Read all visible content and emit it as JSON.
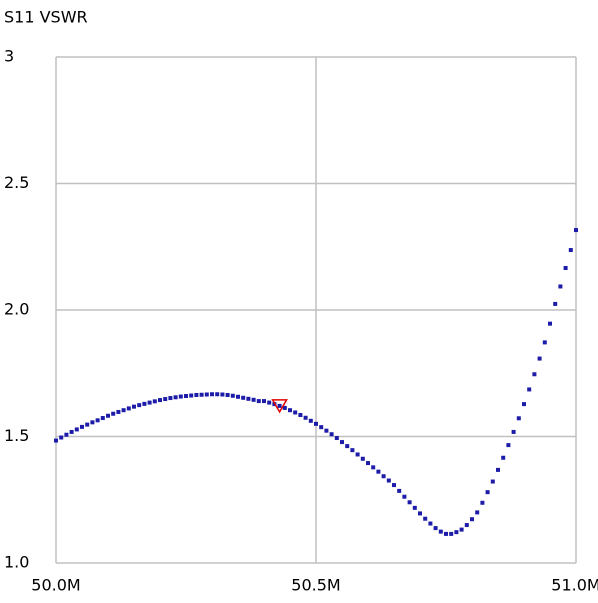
{
  "chart_data": {
    "type": "scatter",
    "title": "S11 VSWR",
    "x": [
      50.0,
      50.01,
      50.02,
      50.03,
      50.04,
      50.05,
      50.06,
      50.07,
      50.08,
      50.09,
      50.1,
      50.11,
      50.12,
      50.13,
      50.14,
      50.15,
      50.16,
      50.17,
      50.18,
      50.19,
      50.2,
      50.21,
      50.22,
      50.23,
      50.24,
      50.25,
      50.26,
      50.27,
      50.28,
      50.29,
      50.3,
      50.31,
      50.32,
      50.33,
      50.34,
      50.35,
      50.36,
      50.37,
      50.38,
      50.39,
      50.4,
      50.41,
      50.42,
      50.43,
      50.44,
      50.45,
      50.46,
      50.47,
      50.48,
      50.49,
      50.5,
      50.51,
      50.52,
      50.53,
      50.54,
      50.55,
      50.56,
      50.57,
      50.58,
      50.59,
      50.6,
      50.61,
      50.62,
      50.63,
      50.64,
      50.65,
      50.66,
      50.67,
      50.68,
      50.69,
      50.7,
      50.71,
      50.72,
      50.73,
      50.74,
      50.75,
      50.76,
      50.77,
      50.78,
      50.79,
      50.8,
      50.81,
      50.82,
      50.83,
      50.84,
      50.85,
      50.86,
      50.87,
      50.88,
      50.89,
      50.9,
      50.91,
      50.92,
      50.93,
      50.94,
      50.95,
      50.96,
      50.97,
      50.98,
      50.99,
      51.0
    ],
    "series": [
      {
        "color": "#1c1ca8",
        "values": [
          1.484,
          1.496,
          1.507,
          1.518,
          1.528,
          1.538,
          1.547,
          1.556,
          1.564,
          1.573,
          1.582,
          1.59,
          1.597,
          1.604,
          1.611,
          1.618,
          1.624,
          1.629,
          1.634,
          1.639,
          1.644,
          1.648,
          1.652,
          1.655,
          1.658,
          1.66,
          1.662,
          1.664,
          1.665,
          1.666,
          1.667,
          1.667,
          1.666,
          1.664,
          1.661,
          1.657,
          1.653,
          1.649,
          1.645,
          1.64,
          1.64,
          1.634,
          1.628,
          1.621,
          1.613,
          1.604,
          1.595,
          1.585,
          1.574,
          1.562,
          1.55,
          1.537,
          1.523,
          1.509,
          1.494,
          1.478,
          1.462,
          1.446,
          1.429,
          1.412,
          1.395,
          1.378,
          1.361,
          1.343,
          1.326,
          1.308,
          1.285,
          1.262,
          1.24,
          1.218,
          1.196,
          1.175,
          1.156,
          1.138,
          1.124,
          1.115,
          1.115,
          1.122,
          1.132,
          1.15,
          1.173,
          1.2,
          1.238,
          1.28,
          1.322,
          1.368,
          1.416,
          1.466,
          1.518,
          1.572,
          1.628,
          1.686,
          1.746,
          1.808,
          1.872,
          1.946,
          2.024,
          2.093,
          2.166,
          2.237,
          2.316
        ]
      }
    ],
    "marker": {
      "x": 50.43,
      "y": 1.621,
      "color": "#e00000"
    },
    "xlim": [
      50,
      51
    ],
    "ylim": [
      1,
      3
    ],
    "xticks": [
      {
        "value": 50,
        "label": "50.0M"
      },
      {
        "value": 50.5,
        "label": "50.5M"
      },
      {
        "value": 51,
        "label": "51.0M"
      }
    ],
    "yticks": [
      {
        "value": 1,
        "label": "1.0"
      },
      1.5,
      {
        "value": 2,
        "label": "2.0"
      },
      2.5,
      3
    ],
    "grid": true
  }
}
